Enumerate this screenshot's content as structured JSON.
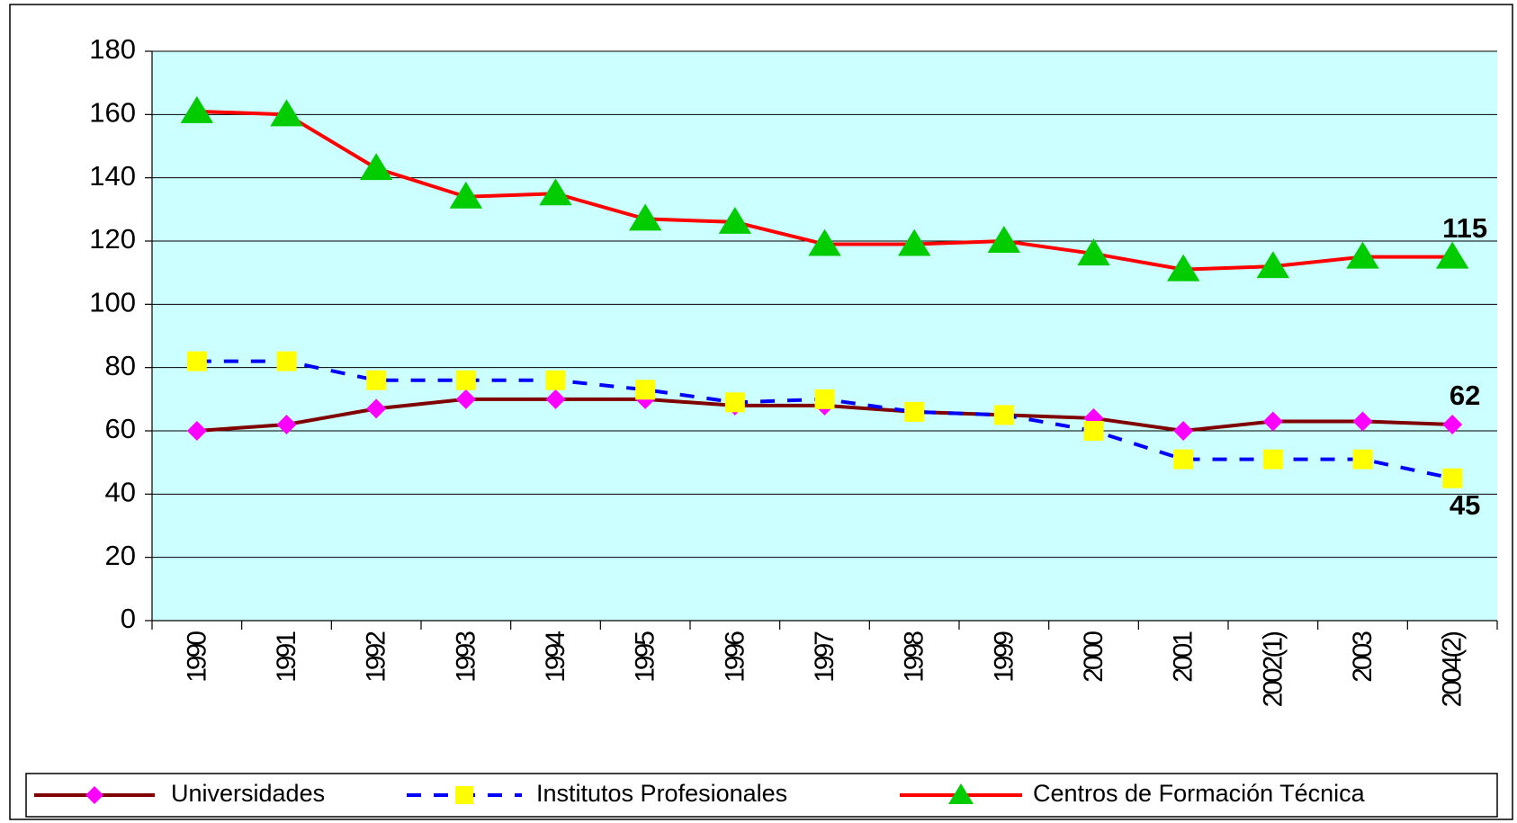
{
  "chart_data": {
    "type": "line",
    "categories": [
      "1990",
      "1991",
      "1992",
      "1993",
      "1994",
      "1995",
      "1996",
      "1997",
      "1998",
      "1999",
      "2000",
      "2001",
      "2002(1)",
      "2003",
      "2004(2)"
    ],
    "series": [
      {
        "name": "Universidades",
        "color": "#800000",
        "marker_color": "#ff00ff",
        "marker": "diamond",
        "dash": false,
        "values": [
          60,
          62,
          67,
          70,
          70,
          70,
          68,
          68,
          66,
          65,
          64,
          60,
          63,
          63,
          62
        ]
      },
      {
        "name": "Institutos Profesionales",
        "color": "#0000ff",
        "marker_color": "#ffff00",
        "marker": "square",
        "dash": true,
        "values": [
          82,
          82,
          76,
          76,
          76,
          73,
          69,
          70,
          66,
          65,
          60,
          51,
          51,
          51,
          45
        ]
      },
      {
        "name": "Centros de Formación Técnica",
        "color": "#ff0000",
        "marker_color": "#00cc00",
        "marker": "triangle",
        "dash": false,
        "values": [
          161,
          160,
          143,
          134,
          135,
          127,
          126,
          119,
          119,
          120,
          116,
          111,
          112,
          115,
          115
        ]
      }
    ],
    "ylim": [
      0,
      180
    ],
    "yticks": [
      0,
      20,
      40,
      60,
      80,
      100,
      120,
      140,
      160,
      180
    ],
    "grid": true,
    "legend": "bottom",
    "plot_background": "#ccffff"
  }
}
